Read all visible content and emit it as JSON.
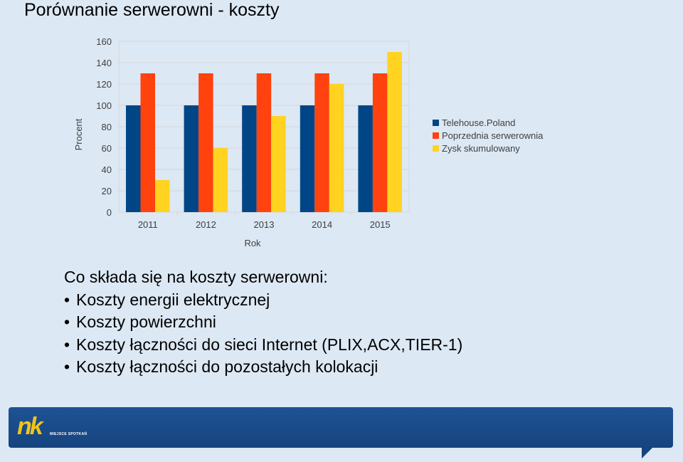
{
  "title": "Porównanie serwerowni - koszty",
  "chart_data": {
    "type": "bar",
    "categories": [
      "2011",
      "2012",
      "2013",
      "2014",
      "2015"
    ],
    "series": [
      {
        "name": "Telehouse.Poland",
        "color": "#004586",
        "values": [
          100,
          100,
          100,
          100,
          100
        ]
      },
      {
        "name": "Poprzednia serwerownia",
        "color": "#ff420e",
        "values": [
          130,
          130,
          130,
          130,
          130
        ]
      },
      {
        "name": "Zysk skumulowany",
        "color": "#ffd320",
        "values": [
          30,
          60,
          90,
          120,
          150
        ]
      }
    ],
    "ylim": [
      0,
      160
    ],
    "yticks": [
      "0",
      "20",
      "40",
      "60",
      "80",
      "100",
      "120",
      "140",
      "160"
    ],
    "xlabel": "Rok",
    "ylabel": "Procent",
    "grid": true,
    "legend": "right"
  },
  "content": {
    "intro": "Co składa się na koszty serwerowni:",
    "bullet": "•",
    "items": [
      "Koszty energii elektrycznej",
      "Koszty powierzchni",
      "Koszty łączności do sieci Internet (PLIX,ACX,TIER-1)",
      "Koszty łączności do pozostałych kolokacji"
    ]
  },
  "footer": {
    "logo": "nk",
    "logo_tagline": "MIEJSCE SPOTKAŃ",
    "colors": {
      "bar": "#1a4c8a",
      "logo": "#f0c419"
    }
  }
}
